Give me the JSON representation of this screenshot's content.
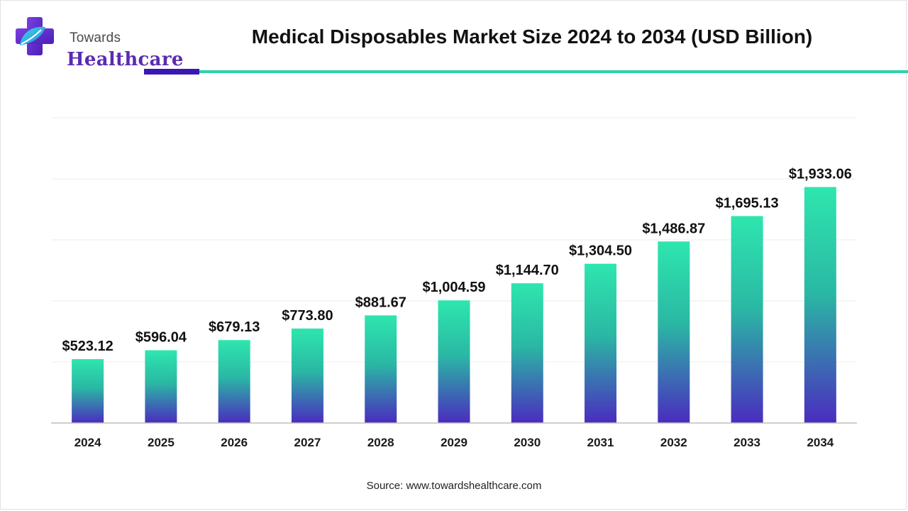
{
  "brand": {
    "line1": "Towards",
    "line2": "Healthcare"
  },
  "title": "Medical Disposables Market Size 2024 to 2034 (USD Billion)",
  "source": "Source: www.towardshealthcare.com",
  "colors": {
    "bar_top": "#2ee6ae",
    "bar_bottom": "#4a2cbf",
    "accent_dark": "#3a17b5",
    "accent_teal": "#2fd3a6"
  },
  "chart_data": {
    "type": "bar",
    "title": "Medical Disposables Market Size 2024 to 2034 (USD Billion)",
    "categories": [
      "2024",
      "2025",
      "2026",
      "2027",
      "2028",
      "2029",
      "2030",
      "2031",
      "2032",
      "2033",
      "2034"
    ],
    "values": [
      523.12,
      596.04,
      679.13,
      773.8,
      881.67,
      1004.59,
      1144.7,
      1304.5,
      1486.87,
      1695.13,
      1933.06
    ],
    "data_labels": [
      "$523.12",
      "$596.04",
      "$679.13",
      "$773.80",
      "$881.67",
      "$1,004.59",
      "$1,144.70",
      "$1,304.50",
      "$1,486.87",
      "$1,695.13",
      "$1,933.06"
    ],
    "xlabel": "",
    "ylabel": "",
    "ylim": [
      0,
      2500
    ],
    "grid": true,
    "legend": "none"
  }
}
